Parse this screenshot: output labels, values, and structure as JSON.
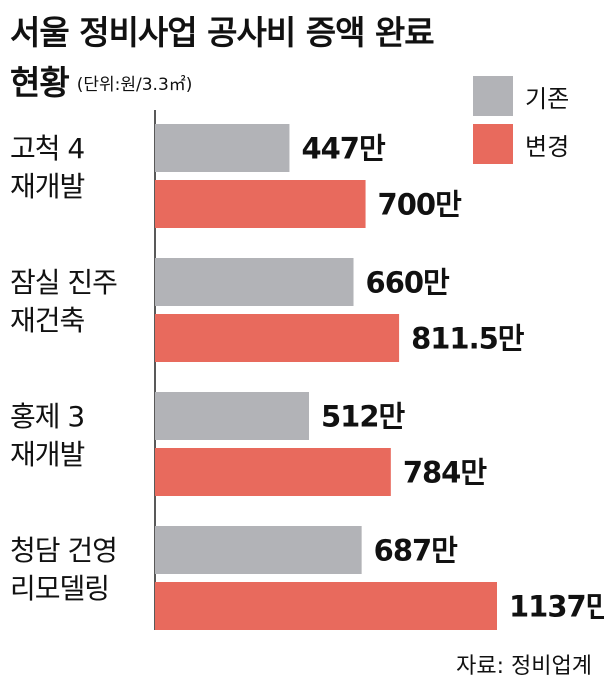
{
  "title_line1": "서울 정비사업 공사비 증액 완료",
  "title_line2": "현황",
  "unit": "(단위:원/3.3㎡)",
  "legend": [
    {
      "label": "기존",
      "color": "#b2b3b7"
    },
    {
      "label": "변경",
      "color": "#e86a5d"
    }
  ],
  "categories": [
    {
      "line1": "고척 4",
      "line2": "재개발"
    },
    {
      "line1": "잠실 진주",
      "line2": "재건축"
    },
    {
      "line1": "홍제 3",
      "line2": "재개발"
    },
    {
      "line1": "청담 건영",
      "line2": "리모델링"
    }
  ],
  "source": "자료: 정비업계",
  "chart_data": {
    "type": "bar",
    "orientation": "horizontal",
    "categories": [
      "고척 4 재개발",
      "잠실 진주 재건축",
      "홍제 3 재개발",
      "청담 건영 리모델링"
    ],
    "series": [
      {
        "name": "기존",
        "color": "#b2b3b7",
        "values": [
          447,
          660,
          512,
          687
        ],
        "labels": [
          "447만",
          "660만",
          "512만",
          "687만"
        ]
      },
      {
        "name": "변경",
        "color": "#e86a5d",
        "values": [
          700,
          811.5,
          784,
          1137
        ],
        "labels": [
          "700만",
          "811.5만",
          "784만",
          "1137만"
        ]
      }
    ],
    "title": "서울 정비사업 공사비 증액 완료 현황",
    "unit": "원/3.3㎡",
    "xlim": [
      0,
      1137
    ],
    "legend_position": "top-right",
    "grid": false
  }
}
